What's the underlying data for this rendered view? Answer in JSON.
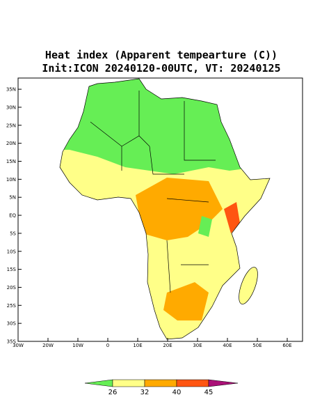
{
  "title": {
    "line1": "Heat index (Apparent tempearture (C))",
    "line2": "Init:ICON 20240120-00UTC, VT: 20240125"
  },
  "map": {
    "lon_labels": [
      "30W",
      "20W",
      "10W",
      "0",
      "10E",
      "20E",
      "30E",
      "40E",
      "50E",
      "60E"
    ],
    "lat_labels": [
      "35S",
      "30S",
      "25S",
      "20S",
      "15S",
      "10S",
      "5S",
      "EQ",
      "5N",
      "10N",
      "15N",
      "20N",
      "25N",
      "30N",
      "35N"
    ]
  },
  "colorbar": {
    "levels": [
      26,
      32,
      40,
      45
    ],
    "colors": [
      "#66ee55",
      "#ffff88",
      "#ffaa00",
      "#ff5511",
      "#aa1177"
    ]
  }
}
